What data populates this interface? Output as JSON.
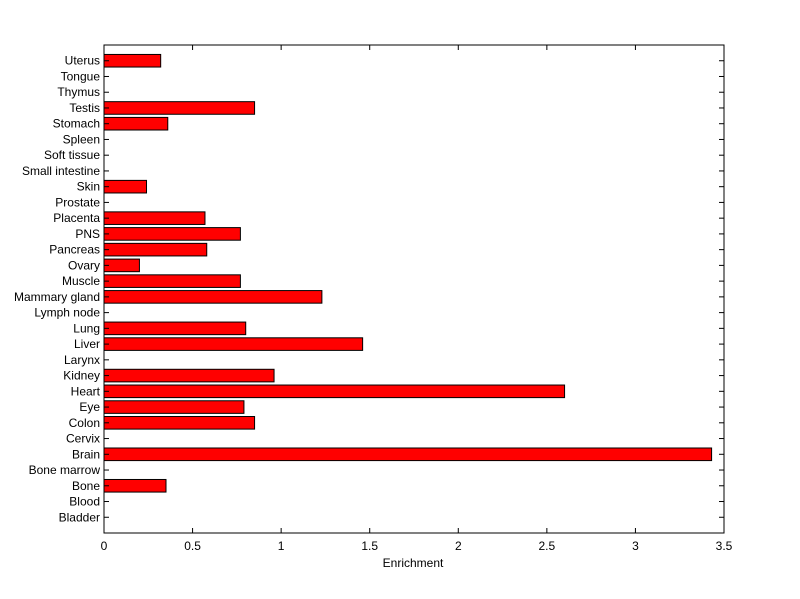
{
  "chart_data": {
    "type": "bar",
    "orientation": "horizontal",
    "title": "",
    "xlabel": "Enrichment",
    "ylabel": "",
    "xlim": [
      0,
      3.5
    ],
    "xticks": [
      "0",
      "0.5",
      "1",
      "1.5",
      "2",
      "2.5",
      "3",
      "3.5"
    ],
    "grid": false,
    "bar_color": "#ff0000",
    "bar_edge_color": "#000000",
    "categories": [
      "Bladder",
      "Blood",
      "Bone",
      "Bone marrow",
      "Brain",
      "Cervix",
      "Colon",
      "Eye",
      "Heart",
      "Kidney",
      "Larynx",
      "Liver",
      "Lung",
      "Lymph node",
      "Mammary gland",
      "Muscle",
      "Ovary",
      "Pancreas",
      "PNS",
      "Placenta",
      "Prostate",
      "Skin",
      "Small intestine",
      "Soft tissue",
      "Spleen",
      "Stomach",
      "Testis",
      "Thymus",
      "Tongue",
      "Uterus"
    ],
    "values": [
      0,
      0,
      0.35,
      0,
      3.43,
      0,
      0.85,
      0.79,
      2.6,
      0.96,
      0,
      1.46,
      0.8,
      0,
      1.23,
      0.77,
      0.2,
      0.58,
      0.77,
      0.57,
      0,
      0.24,
      0,
      0,
      0,
      0.36,
      0.85,
      0,
      0,
      0.32
    ]
  }
}
